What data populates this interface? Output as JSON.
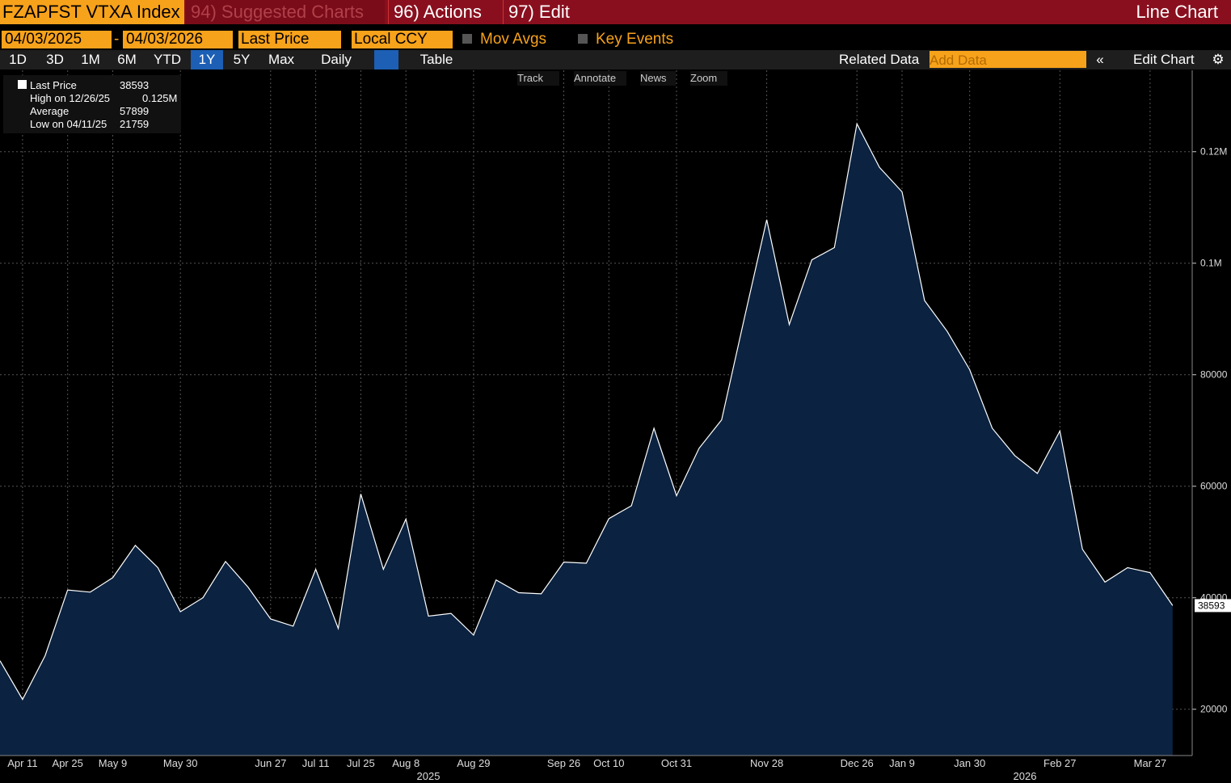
{
  "toolbar": {
    "security": "FZAPFST VTXA Index",
    "menus": [
      "94) Suggested Charts",
      "96) Actions",
      "97) Edit"
    ],
    "chart_type": "Line Chart",
    "start_date": "04/03/2025",
    "date_sep": "-",
    "end_date": "04/03/2026",
    "field": "Last Price",
    "currency": "Local CCY",
    "options": [
      "Mov Avgs",
      "Key Events"
    ],
    "periods": [
      "1D",
      "3D",
      "1M",
      "6M",
      "YTD",
      "1Y",
      "5Y",
      "Max"
    ],
    "frequency": "Daily",
    "table": "Table",
    "related_data": "Related Data",
    "add_data": "Add Data",
    "edit_chart": "Edit Chart",
    "tools": [
      "Track",
      "Annotate",
      "News",
      "Zoom"
    ]
  },
  "chart_data": {
    "type": "area",
    "categories": [
      null,
      "Apr 11",
      null,
      "Apr 25",
      null,
      "May 9",
      null,
      null,
      "May 30",
      null,
      null,
      null,
      "Jun 27",
      null,
      "Jul 11",
      null,
      "Jul 25",
      null,
      "Aug 8",
      null,
      null,
      "Aug 29",
      null,
      null,
      null,
      "Sep 26",
      null,
      "Oct 10",
      null,
      null,
      "Oct 31",
      null,
      null,
      null,
      "Nov 28",
      null,
      null,
      null,
      "Dec 26",
      null,
      "Jan 9",
      null,
      null,
      "Jan 30",
      null,
      null,
      null,
      "Feb 27",
      null,
      null,
      null,
      "Mar 27",
      null
    ],
    "year_labels": [
      "2025",
      "2026"
    ],
    "series": [
      {
        "name": "Last Price",
        "color": "#ffffff",
        "fill": "#0b2240",
        "values": [
          28700,
          21759,
          29600,
          41400,
          41000,
          43600,
          49400,
          45400,
          37500,
          40000,
          46500,
          41900,
          36200,
          34900,
          45100,
          34500,
          58600,
          45100,
          54100,
          36700,
          37200,
          33300,
          43200,
          40900,
          40700,
          46400,
          46200,
          54200,
          56500,
          70400,
          58300,
          66800,
          71900,
          90000,
          107800,
          89000,
          100600,
          102800,
          125000,
          117200,
          112800,
          93300,
          87800,
          80900,
          70400,
          65500,
          62300,
          69900,
          48700,
          42800,
          45400,
          44500,
          38593
        ]
      }
    ],
    "ylim": [
      11700,
      134600
    ],
    "yticks": [
      20000,
      40000,
      60000,
      80000,
      {
        "value": 100000,
        "label": "0.1M"
      },
      {
        "value": 120000,
        "label": "0.12M"
      }
    ],
    "grid": true,
    "legend_stats": [
      {
        "label": "High on 12/26/25",
        "value": "0.125M"
      },
      {
        "label": "Average",
        "value": "57899"
      },
      {
        "label": "Low on 04/11/25",
        "value": "21759"
      }
    ]
  }
}
